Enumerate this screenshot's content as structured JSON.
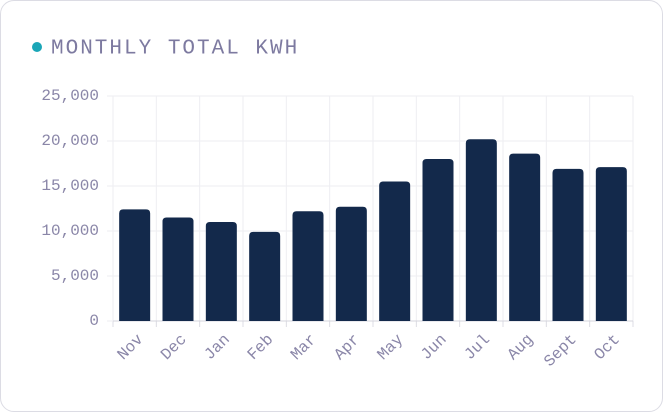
{
  "chart_data": {
    "type": "bar",
    "title": "MONTHLY TOTAL KWH",
    "categories": [
      "Nov",
      "Dec",
      "Jan",
      "Feb",
      "Mar",
      "Apr",
      "May",
      "Jun",
      "Jul",
      "Aug",
      "Sept",
      "Oct"
    ],
    "values": [
      12400,
      11500,
      11000,
      9900,
      12200,
      12700,
      15500,
      18000,
      20200,
      18600,
      16900,
      17100
    ],
    "color": "#13294b",
    "ylim": [
      0,
      25000
    ],
    "yticks": [
      0,
      {
        "value": 5000,
        "label": "5,000"
      },
      {
        "value": 10000,
        "label": "10,000"
      },
      {
        "value": 15000,
        "label": "15,000"
      },
      {
        "value": 20000,
        "label": "20,000"
      },
      {
        "value": 25000,
        "label": "25,000"
      }
    ],
    "grid": true
  }
}
